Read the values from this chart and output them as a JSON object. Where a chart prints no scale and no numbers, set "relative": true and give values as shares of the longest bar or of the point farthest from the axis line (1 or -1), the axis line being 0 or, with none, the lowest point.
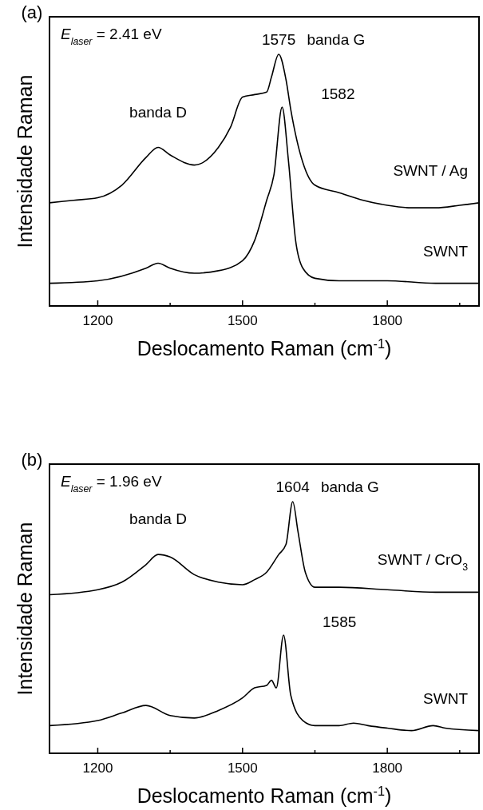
{
  "chart_data": [
    {
      "type": "line",
      "title": "(a)",
      "xlabel": "Deslocamento Raman (cm$^{-1}$)",
      "ylabel": "Intensidade Raman",
      "relative": true,
      "xlim": [
        1100,
        1990
      ],
      "xticks": [
        {
          "value": 1100,
          "label": null
        },
        1200,
        {
          "value": 1350,
          "label": null
        },
        1500,
        {
          "value": 1650,
          "label": null
        },
        1800,
        {
          "value": 1950,
          "label": null
        }
      ],
      "grid": false,
      "line_style": "solid",
      "marker": "none",
      "annotations": [
        "E$_{laser}$ = 2.41 eV",
        {
          "text": "banda D",
          "x": 1325,
          "y": 0.63
        },
        {
          "text": "1575",
          "x": 1575,
          "y": 1.0
        },
        {
          "text": "banda G",
          "x": 1575,
          "y": 1.0
        },
        {
          "text": "1582",
          "x": 1582,
          "y": 0.79
        }
      ],
      "series": [
        {
          "name": "SWNT / Ag",
          "color": "#000000",
          "x": [
            1100,
            1150,
            1200,
            1250,
            1300,
            1325,
            1350,
            1400,
            1450,
            1475,
            1500,
            1525,
            1550,
            1560,
            1575,
            1590,
            1600,
            1625,
            1650,
            1700,
            1750,
            1800,
            1850,
            1900,
            1950,
            1990
          ],
          "values": [
            0.41,
            0.42,
            0.43,
            0.48,
            0.59,
            0.63,
            0.6,
            0.56,
            0.63,
            0.71,
            0.83,
            0.84,
            0.85,
            0.91,
            1.0,
            0.9,
            0.78,
            0.57,
            0.48,
            0.45,
            0.42,
            0.4,
            0.39,
            0.39,
            0.4,
            0.41
          ]
        },
        {
          "name": "SWNT",
          "color": "#000000",
          "x": [
            1100,
            1200,
            1300,
            1325,
            1350,
            1400,
            1450,
            1500,
            1525,
            1550,
            1565,
            1582,
            1595,
            1610,
            1625,
            1650,
            1700,
            1750,
            1800,
            1900,
            1990
          ],
          "values": [
            0.09,
            0.1,
            0.15,
            0.17,
            0.15,
            0.13,
            0.14,
            0.18,
            0.26,
            0.42,
            0.52,
            0.79,
            0.58,
            0.26,
            0.15,
            0.11,
            0.1,
            0.1,
            0.1,
            0.09,
            0.09
          ]
        }
      ]
    },
    {
      "type": "line",
      "title": "(b)",
      "xlabel": "Deslocamento Raman (cm$^{-1}$)",
      "ylabel": "Intensidade Raman",
      "relative": true,
      "xlim": [
        1100,
        1990
      ],
      "xticks": [
        {
          "value": 1100,
          "label": null
        },
        1200,
        {
          "value": 1350,
          "label": null
        },
        1500,
        {
          "value": 1650,
          "label": null
        },
        1800,
        {
          "value": 1950,
          "label": null
        }
      ],
      "grid": false,
      "line_style": "solid",
      "marker": "none",
      "annotations": [
        "E$_{laser}$ = 1.96 eV",
        {
          "text": "banda D",
          "x": 1325,
          "y": 0.79
        },
        {
          "text": "1604",
          "x": 1604,
          "y": 1.0
        },
        {
          "text": "banda G",
          "x": 1604,
          "y": 1.0
        },
        {
          "text": "1585",
          "x": 1585,
          "y": 0.47
        }
      ],
      "series": [
        {
          "name": "SWNT / CrO$_{3}$",
          "color": "#000000",
          "x": [
            1100,
            1200,
            1250,
            1300,
            1325,
            1350,
            1400,
            1450,
            1500,
            1525,
            1550,
            1575,
            1590,
            1604,
            1615,
            1630,
            1650,
            1700,
            1800,
            1900,
            1990
          ],
          "values": [
            0.63,
            0.65,
            0.68,
            0.75,
            0.79,
            0.78,
            0.71,
            0.68,
            0.67,
            0.69,
            0.72,
            0.79,
            0.83,
            1.0,
            0.88,
            0.72,
            0.66,
            0.66,
            0.65,
            0.64,
            0.64
          ]
        },
        {
          "name": "SWNT",
          "color": "#000000",
          "x": [
            1100,
            1200,
            1250,
            1300,
            1350,
            1400,
            1450,
            1500,
            1525,
            1550,
            1560,
            1570,
            1585,
            1600,
            1625,
            1650,
            1700,
            1730,
            1760,
            1800,
            1850,
            1895,
            1920,
            1990
          ],
          "values": [
            0.11,
            0.13,
            0.16,
            0.19,
            0.15,
            0.14,
            0.17,
            0.22,
            0.26,
            0.27,
            0.29,
            0.26,
            0.47,
            0.23,
            0.13,
            0.11,
            0.11,
            0.12,
            0.11,
            0.1,
            0.09,
            0.11,
            0.1,
            0.09
          ]
        }
      ]
    }
  ]
}
